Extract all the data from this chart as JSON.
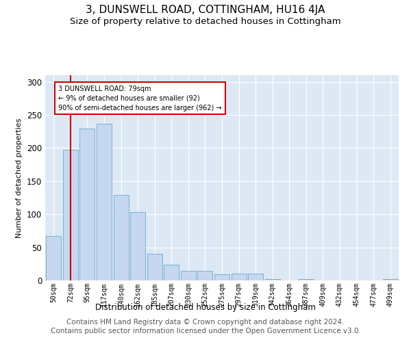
{
  "title": "3, DUNSWELL ROAD, COTTINGHAM, HU16 4JA",
  "subtitle": "Size of property relative to detached houses in Cottingham",
  "xlabel": "Distribution of detached houses by size in Cottingham",
  "ylabel": "Number of detached properties",
  "bins": [
    "50sqm",
    "72sqm",
    "95sqm",
    "117sqm",
    "140sqm",
    "162sqm",
    "185sqm",
    "207sqm",
    "230sqm",
    "252sqm",
    "275sqm",
    "297sqm",
    "319sqm",
    "342sqm",
    "364sqm",
    "387sqm",
    "409sqm",
    "432sqm",
    "454sqm",
    "477sqm",
    "499sqm"
  ],
  "values": [
    67,
    197,
    229,
    237,
    129,
    103,
    40,
    24,
    14,
    14,
    9,
    10,
    10,
    2,
    0,
    2,
    0,
    0,
    0,
    0,
    2
  ],
  "bar_color": "#c5d8ef",
  "bar_edge_color": "#7aafd4",
  "vline_x": 1,
  "vline_color": "#cc0000",
  "annotation_text": "3 DUNSWELL ROAD: 79sqm\n← 9% of detached houses are smaller (92)\n90% of semi-detached houses are larger (962) →",
  "annotation_box_color": "#ffffff",
  "annotation_box_edge": "#cc0000",
  "footer1": "Contains HM Land Registry data © Crown copyright and database right 2024.",
  "footer2": "Contains public sector information licensed under the Open Government Licence v3.0.",
  "ylim": [
    0,
    310
  ],
  "plot_bg_color": "#dde8f5",
  "title_fontsize": 11,
  "subtitle_fontsize": 9.5,
  "footer_fontsize": 7.5
}
